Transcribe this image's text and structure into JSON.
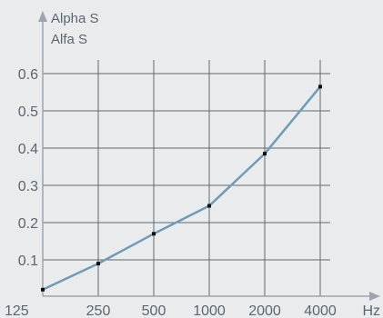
{
  "chart_data": {
    "type": "line",
    "ylabel_lines": [
      "Alpha S",
      "Alfa S"
    ],
    "xlabel": "Hz",
    "categories": [
      "125",
      "250",
      "500",
      "1000",
      "2000",
      "4000"
    ],
    "x_scale": "log2-categorical",
    "values": [
      0.02,
      0.09,
      0.17,
      0.245,
      0.385,
      0.565
    ],
    "y_ticks": [
      "0.1",
      "0.2",
      "0.3",
      "0.4",
      "0.5",
      "0.6"
    ],
    "ylim": [
      0,
      0.63
    ],
    "grid": true,
    "legend": "none",
    "colors": {
      "line": "#6e9cb8",
      "grid": "#5f6870",
      "axis": "#9aa5ae",
      "marker": "#111111",
      "text": "#5b6670",
      "background": "#eaebec"
    }
  }
}
